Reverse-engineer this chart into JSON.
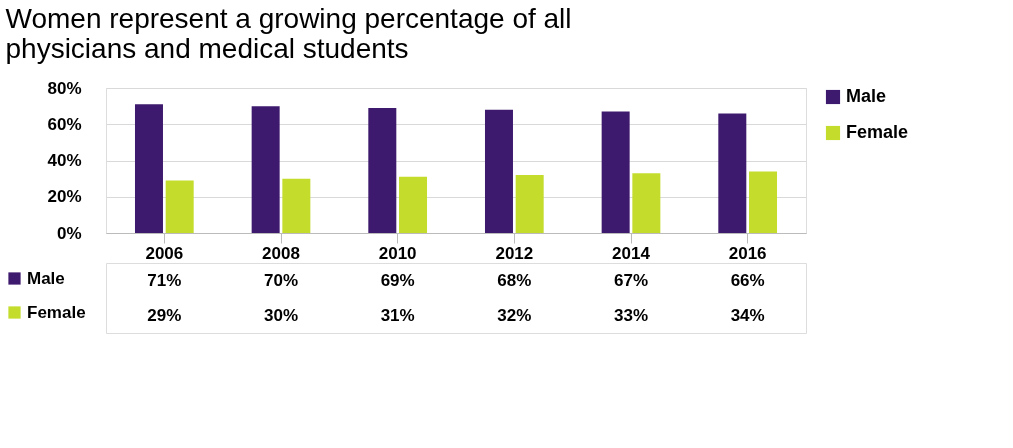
{
  "chart_data": {
    "type": "bar",
    "title": "Women represent a growing percentage of all physicians and medical students",
    "categories": [
      "2006",
      "2008",
      "2010",
      "2012",
      "2014",
      "2016"
    ],
    "series": [
      {
        "name": "Male",
        "color": "#3e1a6e",
        "values": [
          71,
          70,
          69,
          68,
          67,
          66
        ],
        "value_labels": [
          "71%",
          "70%",
          "69%",
          "68%",
          "67%",
          "66%"
        ]
      },
      {
        "name": "Female",
        "color": "#c4dc2c",
        "values": [
          29,
          30,
          31,
          32,
          33,
          34
        ],
        "value_labels": [
          "29%",
          "30%",
          "31%",
          "32%",
          "33%",
          "34%"
        ]
      }
    ],
    "ylim": [
      0,
      80
    ],
    "yticks": [
      {
        "value": 0,
        "label": "0%"
      },
      {
        "value": 20,
        "label": "20%"
      },
      {
        "value": 40,
        "label": "40%"
      },
      {
        "value": 60,
        "label": "60%"
      },
      {
        "value": 80,
        "label": "80%"
      }
    ],
    "grid": "y",
    "legend": "right"
  }
}
